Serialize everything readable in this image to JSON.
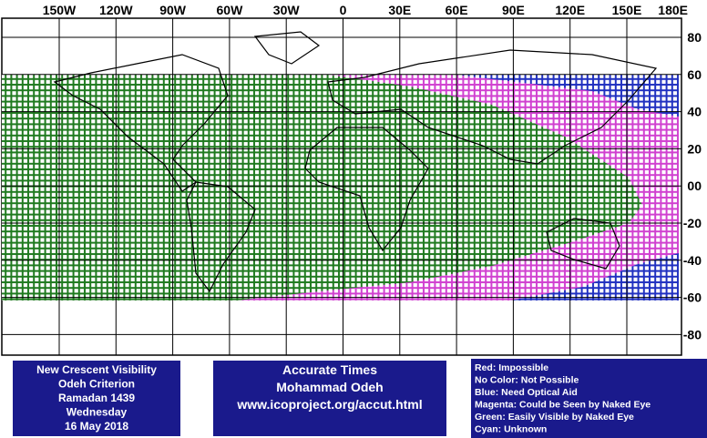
{
  "map": {
    "lon_labels": [
      "150W",
      "120W",
      "90W",
      "60W",
      "30W",
      "0",
      "30E",
      "60E",
      "90E",
      "120E",
      "150E",
      "180E"
    ],
    "lat_labels": [
      "80",
      "60",
      "40",
      "20",
      "00",
      "-20",
      "-40",
      "-60",
      "-80"
    ]
  },
  "info_box": {
    "lines": [
      "New Crescent Visibility",
      "Odeh Criterion",
      "Ramadan 1439",
      "Wednesday",
      "16 May 2018"
    ]
  },
  "credits": {
    "lines": [
      "Accurate Times",
      "Mohammad Odeh",
      "www.icoproject.org/accut.html"
    ]
  },
  "legend": {
    "entries": [
      "Red: Impossible",
      "No Color: Not Possible",
      "Blue: Need Optical Aid",
      "Magenta: Could be Seen by Naked Eye",
      "Green: Easily Visible by Naked Eye",
      "Cyan: Unknown"
    ]
  }
}
